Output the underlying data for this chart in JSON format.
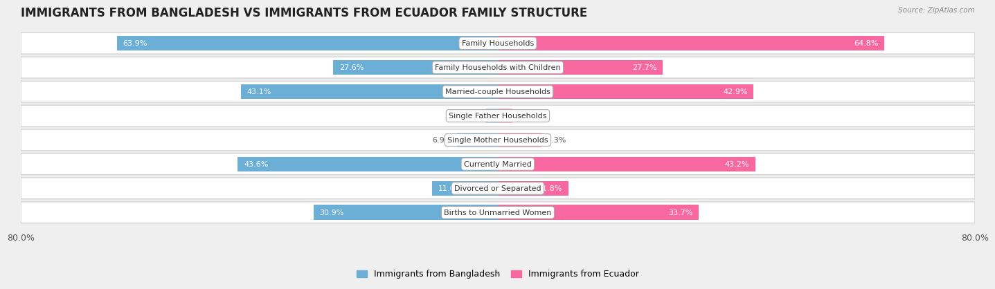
{
  "title": "IMMIGRANTS FROM BANGLADESH VS IMMIGRANTS FROM ECUADOR FAMILY STRUCTURE",
  "source": "Source: ZipAtlas.com",
  "categories": [
    "Family Households",
    "Family Households with Children",
    "Married-couple Households",
    "Single Father Households",
    "Single Mother Households",
    "Currently Married",
    "Divorced or Separated",
    "Births to Unmarried Women"
  ],
  "bangladesh_values": [
    63.9,
    27.6,
    43.1,
    2.1,
    6.9,
    43.6,
    11.0,
    30.9
  ],
  "ecuador_values": [
    64.8,
    27.7,
    42.9,
    2.4,
    7.3,
    43.2,
    11.8,
    33.7
  ],
  "max_val": 80.0,
  "bangladesh_color": "#6baed6",
  "ecuador_color": "#f768a1",
  "bangladesh_color_light": "#b8d9ef",
  "ecuador_color_light": "#fbb4ca",
  "background_color": "#efefef",
  "title_fontsize": 12,
  "label_fontsize": 8,
  "value_fontsize": 8,
  "legend_label_bangladesh": "Immigrants from Bangladesh",
  "legend_label_ecuador": "Immigrants from Ecuador",
  "axis_label_left": "80.0%",
  "axis_label_right": "80.0%"
}
